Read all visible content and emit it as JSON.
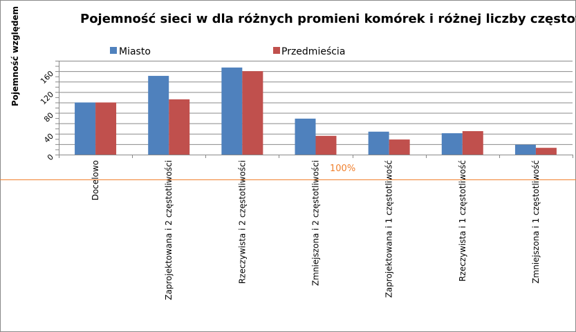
{
  "chart_data": {
    "type": "bar",
    "title": "Pojemność sieci w dla różnych promieni komórek i różnej liczby częstotliwości",
    "ylabel": "Pojemność  względem",
    "xlabel": "",
    "ylim": [
      0,
      180
    ],
    "yticks": [
      0,
      40,
      80,
      120,
      160
    ],
    "grid": true,
    "legend_position": "top",
    "categories": [
      "Docelowo",
      "Zaprojektowana i 2  częstotliwości",
      "Rzeczywista i 2  częstotliwości",
      "Zmniejszona i 2 częstotliwości",
      "Zaprojektowana i 1 częstotliwość",
      "Rzeczywista i 1  częstotliwość",
      "Zmniejszona i 1 częstotliwość"
    ],
    "series": [
      {
        "name": "Miasto",
        "color": "#4f81bd",
        "values": [
          100,
          151,
          167,
          69,
          44,
          41,
          19
        ]
      },
      {
        "name": "Przedmieścia",
        "color": "#c0504d",
        "values": [
          100,
          106,
          160,
          36,
          29,
          45,
          13
        ]
      }
    ],
    "annotation": {
      "text": "100%",
      "color": "#f07f2c"
    }
  }
}
